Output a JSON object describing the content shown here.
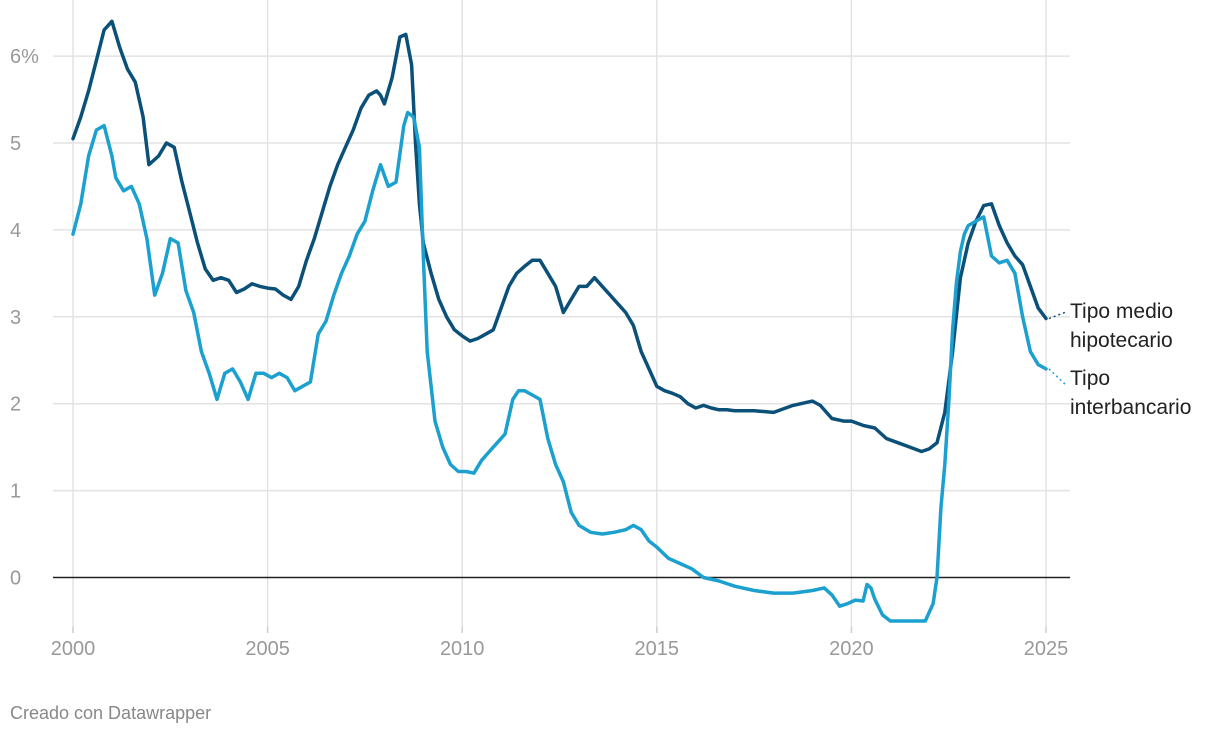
{
  "chart_data": {
    "type": "line",
    "x_range": [
      2000,
      2025.5
    ],
    "ylim": [
      -0.5,
      6.5
    ],
    "x_ticks": [
      {
        "value": 2000,
        "label": "2000"
      },
      {
        "value": 2005,
        "label": "2005"
      },
      {
        "value": 2010,
        "label": "2010"
      },
      {
        "value": 2015,
        "label": "2015"
      },
      {
        "value": 2020,
        "label": "2020"
      },
      {
        "value": 2025,
        "label": "2025"
      }
    ],
    "y_ticks": [
      {
        "value": 0,
        "label": "0"
      },
      {
        "value": 1,
        "label": "1"
      },
      {
        "value": 2,
        "label": "2"
      },
      {
        "value": 3,
        "label": "3"
      },
      {
        "value": 4,
        "label": "4"
      },
      {
        "value": 5,
        "label": "5"
      },
      {
        "value": 6,
        "label": "6%"
      }
    ],
    "grid": true,
    "series": [
      {
        "name": "Tipo medio hipotecario",
        "label_lines": [
          "Tipo medio",
          "hipotecario"
        ],
        "color": "#0b5079",
        "x": [
          2000.0,
          2000.2,
          2000.4,
          2000.6,
          2000.8,
          2001.0,
          2001.2,
          2001.4,
          2001.6,
          2001.8,
          2001.95,
          2002.2,
          2002.4,
          2002.6,
          2002.8,
          2003.0,
          2003.2,
          2003.4,
          2003.6,
          2003.8,
          2004.0,
          2004.2,
          2004.4,
          2004.6,
          2004.8,
          2005.0,
          2005.2,
          2005.4,
          2005.6,
          2005.8,
          2006.0,
          2006.2,
          2006.4,
          2006.6,
          2006.8,
          2007.0,
          2007.2,
          2007.4,
          2007.6,
          2007.8,
          2007.9,
          2008.0,
          2008.2,
          2008.4,
          2008.55,
          2008.7,
          2008.8,
          2008.9,
          2009.0,
          2009.2,
          2009.4,
          2009.6,
          2009.8,
          2010.0,
          2010.2,
          2010.4,
          2010.6,
          2010.8,
          2011.0,
          2011.2,
          2011.4,
          2011.6,
          2011.8,
          2012.0,
          2012.2,
          2012.4,
          2012.6,
          2012.8,
          2013.0,
          2013.2,
          2013.4,
          2013.6,
          2013.8,
          2014.0,
          2014.2,
          2014.4,
          2014.6,
          2014.8,
          2015.0,
          2015.2,
          2015.4,
          2015.6,
          2015.8,
          2016.0,
          2016.2,
          2016.4,
          2016.6,
          2016.8,
          2017.0,
          2017.5,
          2018.0,
          2018.5,
          2019.0,
          2019.2,
          2019.5,
          2019.8,
          2020.0,
          2020.3,
          2020.6,
          2020.9,
          2021.2,
          2021.5,
          2021.8,
          2022.0,
          2022.2,
          2022.4,
          2022.6,
          2022.8,
          2023.0,
          2023.2,
          2023.4,
          2023.6,
          2023.8,
          2024.0,
          2024.2,
          2024.4,
          2024.6,
          2024.8,
          2025.0
        ],
        "y": [
          5.05,
          5.3,
          5.6,
          5.95,
          6.3,
          6.4,
          6.1,
          5.85,
          5.7,
          5.3,
          4.75,
          4.85,
          5.0,
          4.95,
          4.55,
          4.2,
          3.85,
          3.55,
          3.42,
          3.45,
          3.42,
          3.28,
          3.32,
          3.38,
          3.35,
          3.33,
          3.32,
          3.25,
          3.2,
          3.35,
          3.65,
          3.9,
          4.2,
          4.5,
          4.75,
          4.95,
          5.15,
          5.4,
          5.55,
          5.6,
          5.55,
          5.45,
          5.75,
          6.22,
          6.25,
          5.9,
          5.0,
          4.3,
          3.85,
          3.5,
          3.2,
          3.0,
          2.85,
          2.78,
          2.72,
          2.75,
          2.8,
          2.85,
          3.1,
          3.35,
          3.5,
          3.58,
          3.65,
          3.65,
          3.5,
          3.35,
          3.05,
          3.2,
          3.35,
          3.35,
          3.45,
          3.35,
          3.25,
          3.15,
          3.05,
          2.9,
          2.6,
          2.4,
          2.2,
          2.15,
          2.12,
          2.08,
          2.0,
          1.95,
          1.98,
          1.95,
          1.93,
          1.93,
          1.92,
          1.92,
          1.9,
          1.98,
          2.03,
          1.98,
          1.83,
          1.8,
          1.8,
          1.75,
          1.72,
          1.6,
          1.55,
          1.5,
          1.45,
          1.48,
          1.55,
          1.9,
          2.6,
          3.45,
          3.85,
          4.1,
          4.28,
          4.3,
          4.05,
          3.85,
          3.7,
          3.6,
          3.35,
          3.1,
          2.98
        ]
      },
      {
        "name": "Tipo interbancario",
        "label_lines": [
          "Tipo",
          "interbancario"
        ],
        "color": "#1ba0cf",
        "x": [
          2000.0,
          2000.2,
          2000.4,
          2000.6,
          2000.8,
          2001.0,
          2001.1,
          2001.3,
          2001.5,
          2001.7,
          2001.9,
          2002.1,
          2002.3,
          2002.5,
          2002.7,
          2002.9,
          2003.1,
          2003.3,
          2003.5,
          2003.7,
          2003.9,
          2004.1,
          2004.3,
          2004.5,
          2004.7,
          2004.9,
          2005.1,
          2005.3,
          2005.5,
          2005.7,
          2005.9,
          2006.1,
          2006.3,
          2006.5,
          2006.7,
          2006.9,
          2007.1,
          2007.3,
          2007.5,
          2007.7,
          2007.8,
          2007.9,
          2008.1,
          2008.3,
          2008.5,
          2008.6,
          2008.75,
          2008.9,
          2009.0,
          2009.1,
          2009.3,
          2009.5,
          2009.7,
          2009.9,
          2010.1,
          2010.3,
          2010.5,
          2010.7,
          2010.9,
          2011.1,
          2011.3,
          2011.45,
          2011.6,
          2011.8,
          2012.0,
          2012.2,
          2012.4,
          2012.6,
          2012.8,
          2013.0,
          2013.3,
          2013.6,
          2013.9,
          2014.2,
          2014.4,
          2014.6,
          2014.8,
          2015.0,
          2015.3,
          2015.6,
          2015.9,
          2016.2,
          2016.6,
          2017.0,
          2017.5,
          2018.0,
          2018.5,
          2019.0,
          2019.3,
          2019.5,
          2019.7,
          2019.9,
          2020.1,
          2020.3,
          2020.4,
          2020.5,
          2020.6,
          2020.8,
          2021.0,
          2021.3,
          2021.6,
          2021.9,
          2022.1,
          2022.2,
          2022.3,
          2022.4,
          2022.5,
          2022.6,
          2022.7,
          2022.8,
          2022.9,
          2023.0,
          2023.2,
          2023.4,
          2023.6,
          2023.8,
          2024.0,
          2024.2,
          2024.4,
          2024.6,
          2024.8,
          2025.0
        ],
        "y": [
          3.95,
          4.3,
          4.85,
          5.15,
          5.2,
          4.85,
          4.6,
          4.45,
          4.5,
          4.3,
          3.9,
          3.25,
          3.5,
          3.9,
          3.85,
          3.3,
          3.05,
          2.6,
          2.35,
          2.05,
          2.35,
          2.4,
          2.25,
          2.05,
          2.35,
          2.35,
          2.3,
          2.35,
          2.3,
          2.15,
          2.2,
          2.25,
          2.8,
          2.95,
          3.25,
          3.5,
          3.7,
          3.95,
          4.1,
          4.45,
          4.6,
          4.75,
          4.5,
          4.55,
          5.2,
          5.35,
          5.3,
          4.95,
          3.7,
          2.6,
          1.8,
          1.5,
          1.3,
          1.22,
          1.22,
          1.2,
          1.35,
          1.45,
          1.55,
          1.65,
          2.05,
          2.15,
          2.15,
          2.1,
          2.05,
          1.6,
          1.3,
          1.1,
          0.75,
          0.6,
          0.52,
          0.5,
          0.52,
          0.55,
          0.6,
          0.55,
          0.42,
          0.35,
          0.22,
          0.16,
          0.1,
          0.0,
          -0.04,
          -0.1,
          -0.15,
          -0.18,
          -0.18,
          -0.15,
          -0.12,
          -0.2,
          -0.33,
          -0.3,
          -0.26,
          -0.27,
          -0.08,
          -0.12,
          -0.25,
          -0.43,
          -0.5,
          -0.5,
          -0.5,
          -0.5,
          -0.3,
          0.0,
          0.8,
          1.3,
          2.0,
          2.85,
          3.4,
          3.75,
          3.95,
          4.05,
          4.1,
          4.15,
          3.7,
          3.62,
          3.65,
          3.5,
          3.0,
          2.6,
          2.45,
          2.4
        ]
      }
    ],
    "credit": "Creado con Datawrapper"
  }
}
